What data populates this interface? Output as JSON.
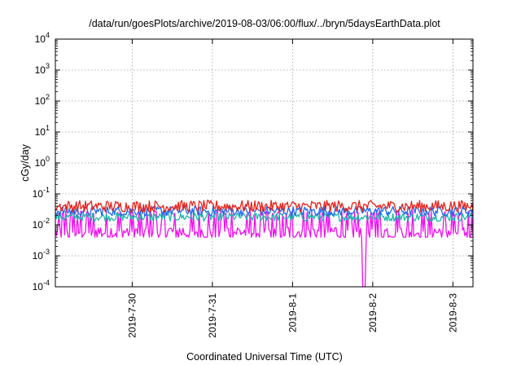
{
  "chart_data": {
    "type": "line",
    "title": "/data/run/goesPlots/archive/2019-08-03/06:00/flux/../bryn/5daysEarthData.plot",
    "xlabel": "Coordinated Universal Time (UTC)",
    "ylabel": "cGy/day",
    "yscale": "log",
    "ylim": [
      0.0001,
      10000
    ],
    "y_ticks": [
      {
        "value": 0.0001,
        "base": "10",
        "exp": "-4"
      },
      {
        "value": 0.001,
        "base": "10",
        "exp": "-3"
      },
      {
        "value": 0.01,
        "base": "10",
        "exp": "-2"
      },
      {
        "value": 0.1,
        "base": "10",
        "exp": "-1"
      },
      {
        "value": 1,
        "base": "10",
        "exp": "0"
      },
      {
        "value": 10,
        "base": "10",
        "exp": "1"
      },
      {
        "value": 100,
        "base": "10",
        "exp": "2"
      },
      {
        "value": 1000,
        "base": "10",
        "exp": "3"
      },
      {
        "value": 10000,
        "base": "10",
        "exp": "4"
      }
    ],
    "xlim": [
      "2019-07-29 01:00",
      "2019-08-03 06:00"
    ],
    "x_ticks": [
      "2019-7-30",
      "2019-7-31",
      "2019-8-1",
      "2019-8-2",
      "2019-8-3"
    ],
    "grid": true,
    "legend": "none",
    "series": [
      {
        "color": "#e8211b",
        "typical": 0.04,
        "min": 0.02,
        "max": 0.07
      },
      {
        "color": "#1bb8a8",
        "typical": 0.018,
        "min": 0.012,
        "max": 0.03
      },
      {
        "color": "#1e69ec",
        "typical": 0.028,
        "min": 0.016,
        "max": 0.045
      },
      {
        "color": "#f20ef2",
        "typical": 0.006,
        "min": 0.004,
        "max": 0.03,
        "dropout": {
          "x": "2019-08-01 21:30",
          "low": 0.0001
        }
      }
    ]
  }
}
